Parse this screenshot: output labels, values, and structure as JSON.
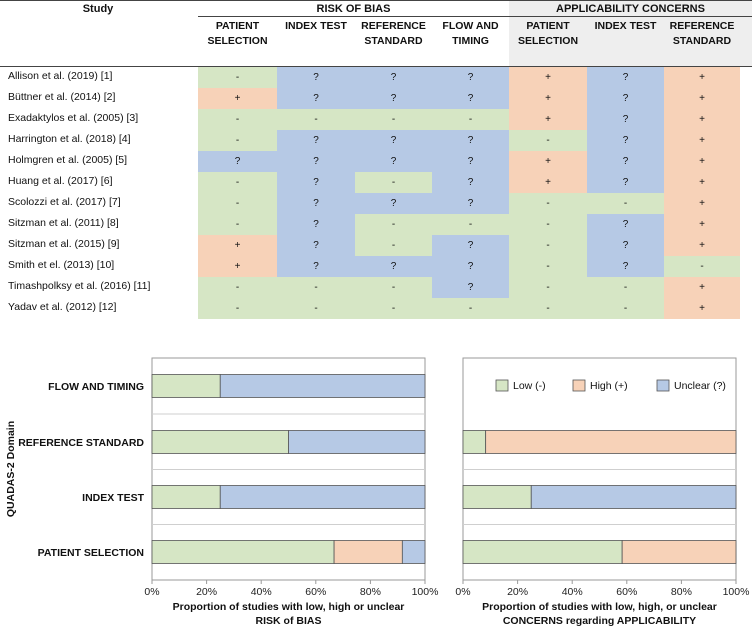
{
  "table": {
    "study_header": "Study",
    "group_risk": "RISK OF BIAS",
    "group_applicability": "APPLICABILITY CONCERNS",
    "columns": [
      {
        "line1": "PATIENT",
        "line2": "SELECTION"
      },
      {
        "line1": "INDEX TEST",
        "line2": ""
      },
      {
        "line1": "REFERENCE",
        "line2": "STANDARD"
      },
      {
        "line1": "FLOW AND",
        "line2": "TIMING"
      },
      {
        "line1": "PATIENT",
        "line2": "SELECTION"
      },
      {
        "line1": "INDEX TEST",
        "line2": ""
      },
      {
        "line1": "REFERENCE",
        "line2": "STANDARD"
      }
    ],
    "studies": [
      {
        "name": "Allison et al. (2019) [1]",
        "ratings": [
          "-",
          "?",
          "?",
          "?",
          "+",
          "?",
          "+"
        ]
      },
      {
        "name": "Büttner et al. (2014) [2]",
        "ratings": [
          "+",
          "?",
          "?",
          "?",
          "+",
          "?",
          "+"
        ]
      },
      {
        "name": "Exadaktylos et al. (2005) [3]",
        "ratings": [
          "-",
          "-",
          "-",
          "-",
          "+",
          "?",
          "+"
        ]
      },
      {
        "name": "Harrington et al. (2018) [4]",
        "ratings": [
          "-",
          "?",
          "?",
          "?",
          "-",
          "?",
          "+"
        ]
      },
      {
        "name": "Holmgren et al. (2005) [5]",
        "ratings": [
          "?",
          "?",
          "?",
          "?",
          "+",
          "?",
          "+"
        ]
      },
      {
        "name": "Huang et al. (2017) [6]",
        "ratings": [
          "-",
          "?",
          "-",
          "?",
          "+",
          "?",
          "+"
        ]
      },
      {
        "name": "Scolozzi et al. (2017) [7]",
        "ratings": [
          "-",
          "?",
          "?",
          "?",
          "-",
          "-",
          "+"
        ]
      },
      {
        "name": "Sitzman et al. (2011) [8]",
        "ratings": [
          "-",
          "?",
          "-",
          "-",
          "-",
          "?",
          "+"
        ]
      },
      {
        "name": "Sitzman et al. (2015) [9]",
        "ratings": [
          "+",
          "?",
          "-",
          "?",
          "-",
          "?",
          "+"
        ]
      },
      {
        "name": "Smith et el. (2013) [10]",
        "ratings": [
          "+",
          "?",
          "?",
          "?",
          "-",
          "?",
          "-"
        ]
      },
      {
        "name": "Timashpolksy et al. (2016) [11]",
        "ratings": [
          "-",
          "-",
          "-",
          "?",
          "-",
          "-",
          "+"
        ]
      },
      {
        "name": "Yadav et al. (2012) [12]",
        "ratings": [
          "-",
          "-",
          "-",
          "-",
          "-",
          "-",
          "+"
        ]
      }
    ]
  },
  "chart_data": [
    {
      "type": "bar",
      "orientation": "horizontal",
      "stacked": true,
      "title": "",
      "categories": [
        "FLOW AND TIMING",
        "REFERENCE STANDARD",
        "INDEX TEST",
        "PATIENT SELECTION"
      ],
      "series": [
        {
          "name": "Low (-)",
          "values": [
            25,
            50,
            25,
            66.7
          ]
        },
        {
          "name": "High (+)",
          "values": [
            0,
            0,
            0,
            25
          ]
        },
        {
          "name": "Unclear (?)",
          "values": [
            75,
            50,
            75,
            8.3
          ]
        }
      ],
      "xlabel_line1": "Proportion of studies with low, high or unclear",
      "xlabel_line2": "RISK of BIAS",
      "ylabel": "QUADAS-2 Domain",
      "xticks": [
        "0%",
        "20%",
        "40%",
        "60%",
        "80%",
        "100%"
      ],
      "xlim": [
        0,
        100
      ],
      "legend": "none"
    },
    {
      "type": "bar",
      "orientation": "horizontal",
      "stacked": true,
      "title": "",
      "categories": [
        "REFERENCE STANDARD",
        "INDEX TEST",
        "PATIENT SELECTION"
      ],
      "series": [
        {
          "name": "Low (-)",
          "values": [
            8.3,
            25,
            58.3
          ]
        },
        {
          "name": "High (+)",
          "values": [
            91.7,
            0,
            41.7
          ]
        },
        {
          "name": "Unclear (?)",
          "values": [
            0,
            75,
            0
          ]
        }
      ],
      "xlabel_line1": "Proportion of studies with low, high, or unclear",
      "xlabel_line2": "CONCERNS regarding APPLICABILITY",
      "xticks": [
        "0%",
        "20%",
        "40%",
        "60%",
        "80%",
        "100%"
      ],
      "xlim": [
        0,
        100
      ],
      "legend": "top-right"
    }
  ],
  "legend": {
    "items": [
      {
        "label": "Low (-)",
        "color": "#d6e6c5"
      },
      {
        "label": "High (+)",
        "color": "#f7d2b8"
      },
      {
        "label": "Unclear (?)",
        "color": "#b6c9e5"
      }
    ]
  },
  "colors": {
    "low": "#d6e6c5",
    "high": "#f7d2b8",
    "unclear": "#b6c9e5",
    "applicability_header_bg": "#eeeeee"
  }
}
